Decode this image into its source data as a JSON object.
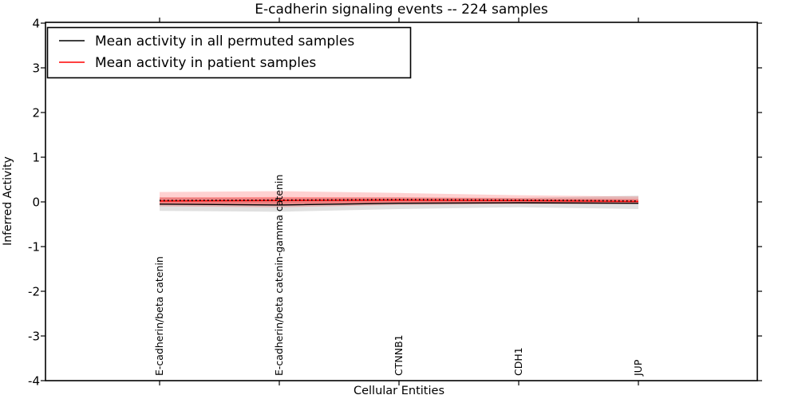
{
  "title": "E-cadherin signaling events -- 224 samples",
  "legend": {
    "items": [
      {
        "label": "Mean activity in all permuted samples",
        "color": "#000000"
      },
      {
        "label": "Mean activity in patient samples",
        "color": "#ff0000"
      }
    ]
  },
  "chart_data": {
    "type": "line",
    "title": "E-cadherin signaling events -- 224 samples",
    "xlabel": "Cellular Entities",
    "ylabel": "Inferred Activity",
    "ylim": [
      -4,
      4
    ],
    "yticks": [
      4,
      3,
      2,
      1,
      0,
      -1,
      -2,
      -3,
      -4
    ],
    "grid": false,
    "legend_position": "upper left",
    "categories": [
      "E-cadherin/beta catenin",
      "E-cadherin/beta catenin-gamma catenin",
      "CTNNB1",
      "CDH1",
      "JUP"
    ],
    "series": [
      {
        "name": "Mean activity in all permuted samples",
        "color": "#000000",
        "style": "solid",
        "values": [
          -0.05,
          -0.07,
          -0.03,
          -0.02,
          -0.03
        ]
      },
      {
        "name": "Mean activity in patient samples",
        "color": "#ff0000",
        "style": "solid",
        "values": [
          0.02,
          0.03,
          0.04,
          0.03,
          0.01
        ]
      },
      {
        "name": "Patient mean dotted overlay",
        "color": "#000000",
        "style": "dotted",
        "values": [
          0.03,
          0.04,
          0.05,
          0.04,
          0.02
        ]
      }
    ],
    "bands": [
      {
        "name": "Permuted samples spread",
        "color": "#000000",
        "opacity": 0.12,
        "upper": [
          0.1,
          0.08,
          0.1,
          0.09,
          0.14
        ],
        "lower": [
          -0.2,
          -0.22,
          -0.16,
          -0.12,
          -0.16
        ]
      },
      {
        "name": "Patient samples spread outer",
        "color": "#ff0000",
        "opacity": 0.18,
        "upper": [
          0.22,
          0.24,
          0.2,
          0.15,
          0.12
        ],
        "lower": [
          -0.1,
          -0.12,
          -0.07,
          -0.05,
          -0.05
        ]
      },
      {
        "name": "Patient samples spread inner",
        "color": "#ff0000",
        "opacity": 0.3,
        "upper": [
          0.1,
          0.11,
          0.1,
          0.08,
          0.06
        ],
        "lower": [
          -0.04,
          -0.05,
          -0.02,
          -0.01,
          -0.02
        ]
      }
    ]
  }
}
